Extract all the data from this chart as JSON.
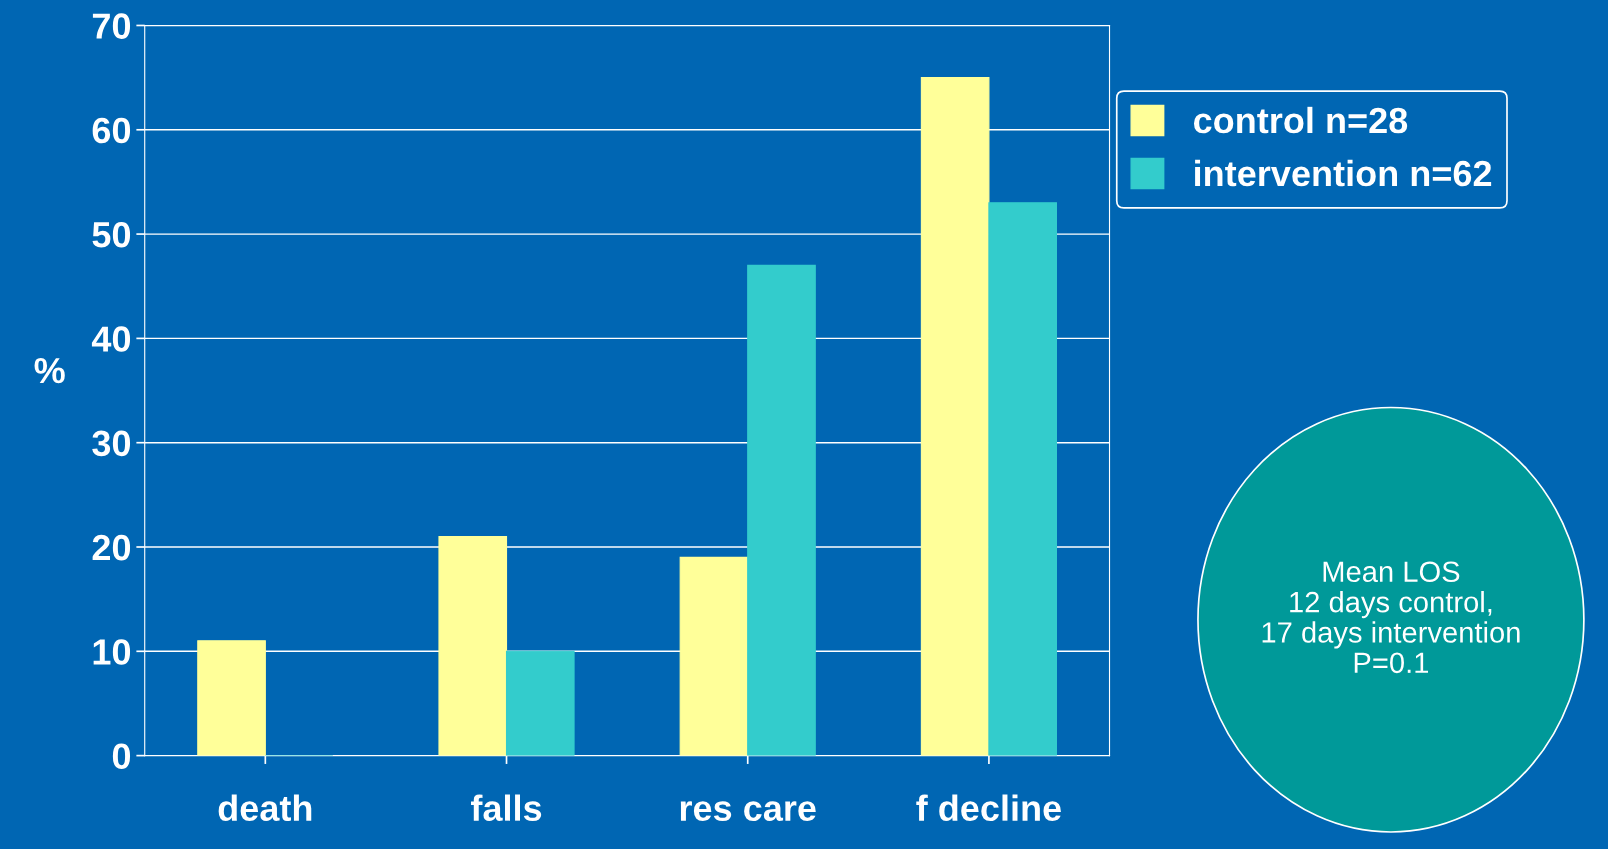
{
  "chart_data": {
    "type": "bar",
    "ylabel": "%",
    "categories": [
      "death",
      "falls",
      "res care",
      "f decline"
    ],
    "series": [
      {
        "name": "control n=28",
        "color": "#ffff99",
        "values": [
          11,
          21,
          19,
          65
        ]
      },
      {
        "name": "intervention n=62",
        "color": "#33cccc",
        "values": [
          0,
          10,
          47,
          53
        ]
      }
    ],
    "ylim": [
      0,
      70
    ],
    "yticks": [
      0,
      10,
      20,
      30,
      40,
      50,
      60,
      70
    ],
    "grid": "y",
    "legend": "top right",
    "annotations": [
      "Mean LOS\n12 days control,\n17 days intervention\nP=0.1"
    ]
  }
}
